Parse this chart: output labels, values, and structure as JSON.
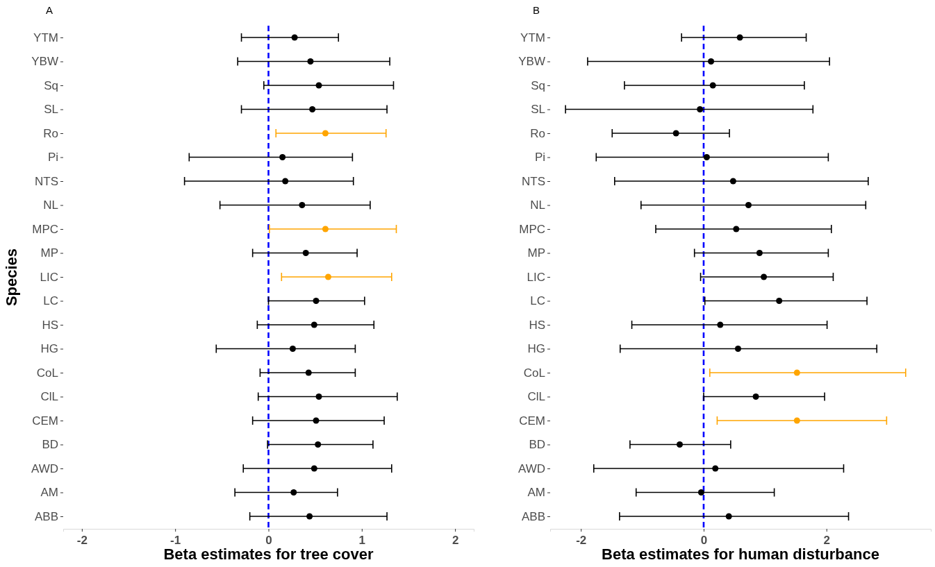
{
  "chart_data": [
    {
      "type": "scatter",
      "orientation": "horizontal",
      "title": "A",
      "xlabel": "Beta estimates for tree cover",
      "ylabel": "Species",
      "categories": [
        "YTM",
        "YBW",
        "Sq",
        "SL",
        "Ro",
        "Pi",
        "NTS",
        "NL",
        "MPC",
        "MP",
        "LIC",
        "LC",
        "HS",
        "HG",
        "CoL",
        "ClL",
        "CEM",
        "BD",
        "AWD",
        "AM",
        "ABB"
      ],
      "values": [
        0.28,
        0.45,
        0.54,
        0.47,
        0.61,
        0.15,
        0.18,
        0.36,
        0.61,
        0.4,
        0.64,
        0.51,
        0.49,
        0.26,
        0.43,
        0.54,
        0.51,
        0.53,
        0.49,
        0.27,
        0.44
      ],
      "errors": [
        [
          -0.29,
          0.75
        ],
        [
          -0.33,
          1.3
        ],
        [
          -0.05,
          1.34
        ],
        [
          -0.29,
          1.27
        ],
        [
          0.08,
          1.26
        ],
        [
          -0.85,
          0.9
        ],
        [
          -0.9,
          0.91
        ],
        [
          -0.52,
          1.09
        ],
        [
          0.01,
          1.37
        ],
        [
          -0.17,
          0.95
        ],
        [
          0.14,
          1.32
        ],
        [
          0.0,
          1.03
        ],
        [
          -0.12,
          1.13
        ],
        [
          -0.56,
          0.93
        ],
        [
          -0.09,
          0.93
        ],
        [
          -0.11,
          1.38
        ],
        [
          -0.17,
          1.24
        ],
        [
          -0.01,
          1.12
        ],
        [
          -0.27,
          1.32
        ],
        [
          -0.36,
          0.74
        ],
        [
          -0.2,
          1.27
        ]
      ],
      "colors": [
        "#000000",
        "#000000",
        "#000000",
        "#000000",
        "#ffa500",
        "#000000",
        "#000000",
        "#000000",
        "#ffa500",
        "#000000",
        "#ffa500",
        "#000000",
        "#000000",
        "#000000",
        "#000000",
        "#000000",
        "#000000",
        "#000000",
        "#000000",
        "#000000",
        "#000000"
      ],
      "xlim": [
        -2.2,
        2.2
      ],
      "xticks": [
        -2,
        -1,
        0,
        1,
        2
      ],
      "marker": "circle",
      "grid": false,
      "ref_lines": [
        {
          "axis": "x",
          "value": 0,
          "color": "#0000ff",
          "line_style": "dashed"
        }
      ]
    },
    {
      "type": "scatter",
      "orientation": "horizontal",
      "title": "B",
      "xlabel": "Beta estimates for human disturbance",
      "categories": [
        "YTM",
        "YBW",
        "Sq",
        "SL",
        "Ro",
        "Pi",
        "NTS",
        "NL",
        "MPC",
        "MP",
        "LIC",
        "LC",
        "HS",
        "HG",
        "CoL",
        "ClL",
        "CEM",
        "BD",
        "AWD",
        "AM",
        "ABB"
      ],
      "values": [
        0.59,
        0.12,
        0.15,
        -0.06,
        -0.45,
        0.05,
        0.48,
        0.73,
        0.53,
        0.91,
        0.98,
        1.23,
        0.27,
        0.56,
        1.52,
        0.85,
        1.52,
        -0.39,
        0.19,
        -0.04,
        0.41
      ],
      "errors": [
        [
          -0.36,
          1.67
        ],
        [
          -1.89,
          2.05
        ],
        [
          -1.29,
          1.64
        ],
        [
          -2.25,
          1.78
        ],
        [
          -1.49,
          0.42
        ],
        [
          -1.75,
          2.03
        ],
        [
          -1.45,
          2.68
        ],
        [
          -1.02,
          2.64
        ],
        [
          -0.78,
          2.08
        ],
        [
          -0.15,
          2.03
        ],
        [
          -0.05,
          2.11
        ],
        [
          0.02,
          2.66
        ],
        [
          -1.17,
          2.01
        ],
        [
          -1.36,
          2.82
        ],
        [
          0.1,
          3.29
        ],
        [
          0.0,
          1.97
        ],
        [
          0.22,
          2.98
        ],
        [
          -1.2,
          0.44
        ],
        [
          -1.79,
          2.28
        ],
        [
          -1.1,
          1.15
        ],
        [
          -1.37,
          2.36
        ]
      ],
      "colors": [
        "#000000",
        "#000000",
        "#000000",
        "#000000",
        "#000000",
        "#000000",
        "#000000",
        "#000000",
        "#000000",
        "#000000",
        "#000000",
        "#000000",
        "#000000",
        "#000000",
        "#ffa500",
        "#000000",
        "#ffa500",
        "#000000",
        "#000000",
        "#000000",
        "#000000"
      ],
      "xlim": [
        -2.5,
        3.7
      ],
      "xticks": [
        -2,
        0,
        2
      ],
      "marker": "circle",
      "grid": false,
      "ref_lines": [
        {
          "axis": "x",
          "value": 0,
          "color": "#0000ff",
          "line_style": "dashed"
        }
      ]
    }
  ]
}
